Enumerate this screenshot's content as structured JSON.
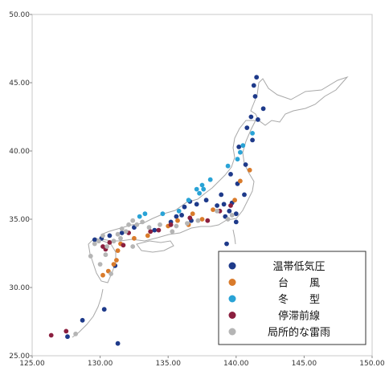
{
  "chart_data": {
    "type": "scatter",
    "title": "",
    "xlabel": "",
    "ylabel": "",
    "xlim": [
      125,
      150
    ],
    "ylim": [
      25,
      50
    ],
    "xticks": [
      "125.00",
      "130.00",
      "135.00",
      "140.00",
      "145.00",
      "150.00"
    ],
    "yticks": [
      "25.00",
      "30.00",
      "35.00",
      "40.00",
      "45.00",
      "50.00"
    ],
    "grid": false,
    "legend_position": "bottom-right",
    "series": [
      {
        "name": "温帯低気圧",
        "color": "#1e3a8a",
        "x": [
          141.5,
          141.3,
          141.4,
          142.0,
          141.1,
          141.6,
          140.8,
          141.2,
          140.2,
          140.7,
          139.6,
          140.1,
          140.6,
          138.9,
          138.6,
          139.1,
          139.7,
          139.5,
          140.0,
          139.2,
          140.0,
          137.8,
          137.1,
          136.6,
          136.2,
          135.6,
          136.0,
          135.2,
          134.0,
          132.5,
          131.6,
          130.7,
          130.1,
          129.6,
          131.1,
          131.3,
          127.6,
          128.7,
          130.3,
          139.3,
          136.7
        ],
        "y": [
          45.4,
          44.8,
          44.0,
          43.1,
          42.5,
          42.3,
          41.7,
          40.8,
          40.3,
          39.0,
          38.3,
          37.6,
          36.8,
          36.8,
          36.0,
          36.1,
          36.2,
          35.6,
          35.4,
          35.2,
          34.8,
          36.4,
          36.1,
          36.3,
          35.9,
          35.2,
          35.3,
          34.8,
          34.2,
          34.4,
          34.0,
          33.8,
          33.6,
          33.5,
          31.6,
          25.9,
          26.4,
          27.6,
          28.4,
          33.2,
          34.9
        ]
      },
      {
        "name": "台　　風",
        "color": "#d97b2b",
        "x": [
          141.0,
          140.3,
          139.9,
          138.3,
          137.5,
          136.8,
          136.5,
          135.7,
          135.0,
          133.5,
          132.5,
          131.5,
          131.3,
          131.2,
          130.6,
          130.2,
          131.0
        ],
        "y": [
          38.6,
          37.8,
          36.4,
          35.7,
          35.0,
          35.4,
          34.6,
          34.9,
          34.5,
          33.8,
          33.6,
          33.2,
          32.7,
          32.0,
          31.2,
          30.9,
          31.7
        ]
      },
      {
        "name": "冬　　型",
        "color": "#29a3d6",
        "x": [
          141.2,
          140.5,
          140.3,
          140.1,
          139.4,
          138.1,
          137.6,
          137.3,
          137.5,
          137.1,
          136.5,
          135.8,
          134.6,
          133.3,
          132.9
        ],
        "y": [
          41.3,
          40.4,
          39.9,
          39.4,
          38.9,
          37.9,
          37.2,
          36.9,
          37.5,
          37.2,
          36.4,
          35.6,
          35.4,
          35.4,
          35.2
        ]
      },
      {
        "name": "停滞前線",
        "color": "#8b1f3f",
        "x": [
          139.6,
          138.8,
          137.9,
          136.6,
          135.2,
          134.3,
          133.7,
          132.1,
          130.7,
          130.2,
          130.4,
          131.7,
          127.5,
          126.4
        ],
        "y": [
          36.0,
          35.6,
          34.9,
          35.1,
          34.6,
          34.2,
          34.1,
          34.0,
          33.3,
          33.0,
          32.8,
          33.1,
          26.8,
          26.5
        ]
      },
      {
        "name": "局所的な雷雨",
        "color": "#b5b5b5",
        "x": [
          139.7,
          139.4,
          138.6,
          137.2,
          136.4,
          135.6,
          135.3,
          134.4,
          133.6,
          133.1,
          132.7,
          132.4,
          131.9,
          131.5,
          131.0,
          130.5,
          130.2,
          129.9,
          129.6,
          130.4,
          130.0,
          129.3,
          130.8,
          131.3,
          131.6,
          132.1,
          132.4,
          128.2
        ],
        "y": [
          35.3,
          35.0,
          35.6,
          34.9,
          34.7,
          34.5,
          34.1,
          34.6,
          34.4,
          34.8,
          34.6,
          34.9,
          34.1,
          33.6,
          33.4,
          33.0,
          33.8,
          33.4,
          33.2,
          32.4,
          31.7,
          32.3,
          31.0,
          33.9,
          34.3,
          34.6,
          33.0,
          26.6
        ]
      }
    ]
  }
}
